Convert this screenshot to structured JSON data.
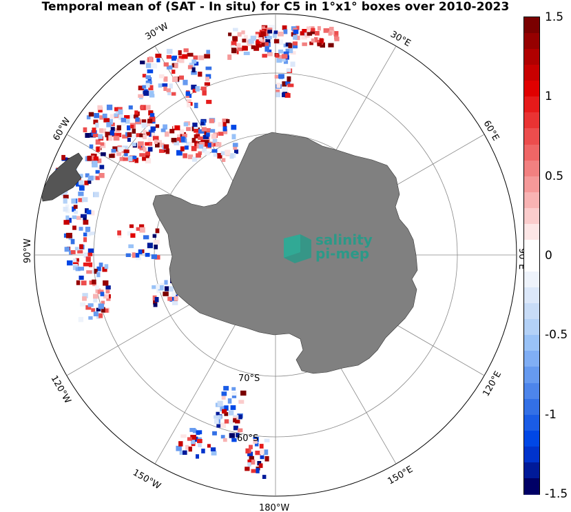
{
  "title": "Temporal mean of (SAT - In situ) for C5 in 1°x1° boxes over 2010-2023",
  "logo": {
    "line1": "salinity",
    "line2": "pi-mep"
  },
  "colorbar": {
    "min": -1.5,
    "max": 1.5,
    "steps": 30,
    "tick_labels": [
      "1.5",
      "1",
      "0.5",
      "0",
      "-0.5",
      "-1",
      "-1.5"
    ],
    "tick_values": [
      1.5,
      1,
      0.5,
      0,
      -0.5,
      -1,
      -1.5
    ],
    "colors_low_to_high": [
      "#000066",
      "#001a99",
      "#0033cc",
      "#0047e6",
      "#1a5ce6",
      "#3370e6",
      "#4d85eb",
      "#669af0",
      "#80aef5",
      "#99c2f7",
      "#b3d1f7",
      "#c8dcf7",
      "#dce8fa",
      "#eef3fb",
      "#ffffff",
      "#ffffff",
      "#fde6e6",
      "#fbcccc",
      "#f8b3b3",
      "#f59999",
      "#f28080",
      "#ef6666",
      "#ec4d4d",
      "#e93333",
      "#e61a1a",
      "#e00000",
      "#c80000",
      "#b00000",
      "#960000",
      "#7a0000"
    ]
  },
  "map": {
    "projection": "south-polar-stereographic",
    "land_color": "#808080",
    "meridian_labels": [
      "30°W",
      "30°E",
      "60°W",
      "60°E",
      "90°W",
      "90°E",
      "120°W",
      "120°E",
      "150°W",
      "150°E",
      "180°W"
    ],
    "parallel_labels": [
      "70°S",
      "60°S"
    ]
  }
}
